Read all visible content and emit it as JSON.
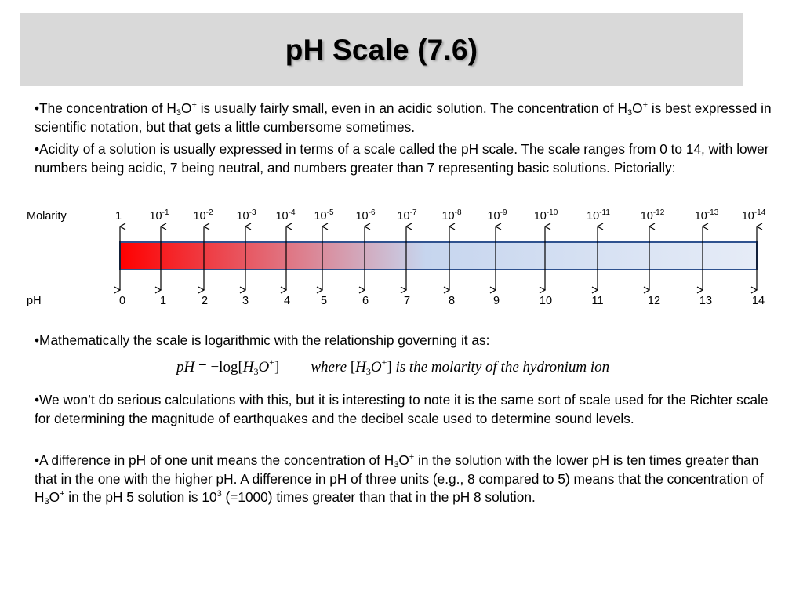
{
  "title": "pH Scale (7.6)",
  "bullets": {
    "b1": {
      "p1": "•The concentration of H",
      "sub1": "3",
      "p2": "O",
      "sup1": "+",
      "p3": " is usually fairly small, even in an acidic solution.  The concentration of H",
      "sub2": "3",
      "p4": "O",
      "sup2": "+",
      "p5": " is best expressed in scientific notation, but that gets a little cumbersome sometimes."
    },
    "b2": "•Acidity of a solution is usually expressed in terms of a scale called the pH scale.  The scale ranges from 0 to 14, with lower numbers being acidic, 7 being neutral, and numbers greater than 7 representing basic solutions.  Pictorially:",
    "b3": "•Mathematically the scale is logarithmic with the relationship governing it as:",
    "b4": "•We won’t do serious calculations with this, but it is interesting to note it is the same sort of scale used for the Richter scale for determining the magnitude of earthquakes and the decibel scale used to determine sound levels.",
    "b5": {
      "p1": "•A difference in pH of one unit means the concentration of H",
      "sub1": "3",
      "p2": "O",
      "sup1": "+",
      "p3": " in the solution with the lower pH is ten times greater than that in the one with the higher pH.  A difference in pH of three units (e.g., 8 compared to 5) means that the concentration of H",
      "sub2": "3",
      "p4": "O",
      "sup2": "+",
      "p5": " in the pH 5 solution is 10",
      "sup3": "3",
      "p6": " (=1000) times greater than that in the pH 8 solution."
    }
  },
  "scale": {
    "molarity_label": "Molarity",
    "ph_label": "pH",
    "molarity_first": "1",
    "molarity_base": "10",
    "molarity_exponents": [
      "-1",
      "-2",
      "-3",
      "-4",
      "-5",
      "-6",
      "-7",
      "-8",
      "-9",
      "-10",
      "-11",
      "-12",
      "-13",
      "-14"
    ],
    "ph_values": [
      "0",
      "1",
      "2",
      "3",
      "4",
      "5",
      "6",
      "7",
      "8",
      "9",
      "10",
      "11",
      "12",
      "13",
      "14"
    ],
    "colors": {
      "acid": "#ff0000",
      "neutral": "#c6d5ee",
      "base": "#e6ecf7",
      "border": "#2f528f"
    }
  },
  "formula": {
    "lhs": "pH",
    "eq": " = −log[",
    "H": "H",
    "sub": "3",
    "O": "O",
    "sup": "+",
    "close": "]",
    "where": "where",
    "w_open": " [",
    "w_H": "H",
    "w_sub": "3",
    "w_O": "O",
    "w_sup": "+",
    "w_close": "]",
    "w_text": " is the molarity of  the hydronium ion"
  }
}
